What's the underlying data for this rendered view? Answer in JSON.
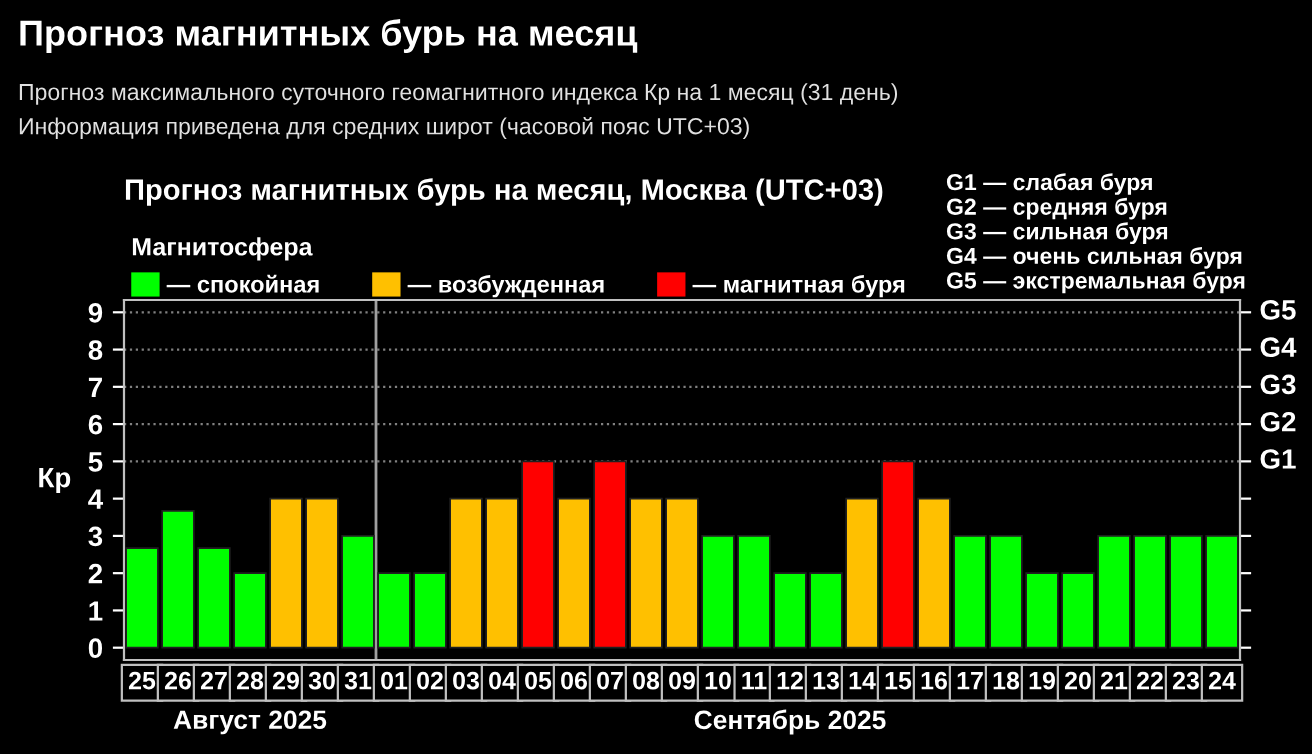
{
  "chart_data": {
    "type": "bar",
    "title": "Прогноз магнитных бурь на месяц, Москва (UTC+03)",
    "ylabel": "Кр",
    "legend_title": "Магнитосфера",
    "categories": [
      "25",
      "26",
      "27",
      "28",
      "29",
      "30",
      "31",
      "01",
      "02",
      "03",
      "04",
      "05",
      "06",
      "07",
      "08",
      "09",
      "10",
      "11",
      "12",
      "13",
      "14",
      "15",
      "16",
      "17",
      "18",
      "19",
      "20",
      "21",
      "22",
      "23",
      "24"
    ],
    "series": [
      {
        "name": "— спокойная",
        "color": "#00ff00",
        "values": [
          2.67,
          3.67,
          2.67,
          2,
          null,
          null,
          3,
          2,
          2,
          null,
          null,
          null,
          null,
          null,
          null,
          null,
          3,
          3,
          2,
          2,
          null,
          null,
          null,
          3,
          3,
          2,
          2,
          3,
          3,
          3,
          3
        ]
      },
      {
        "name": "— возбужденная",
        "color": "#ffc000",
        "values": [
          null,
          null,
          null,
          null,
          4,
          4,
          null,
          null,
          null,
          4,
          4,
          null,
          4,
          null,
          4,
          4,
          null,
          null,
          null,
          null,
          4,
          null,
          4,
          null,
          null,
          null,
          null,
          null,
          null,
          null,
          null
        ]
      },
      {
        "name": "— магнитная буря",
        "color": "#ff0000",
        "values": [
          null,
          null,
          null,
          null,
          null,
          null,
          null,
          null,
          null,
          null,
          null,
          5,
          null,
          5,
          null,
          null,
          null,
          null,
          null,
          null,
          null,
          5,
          null,
          null,
          null,
          null,
          null,
          null,
          null,
          null,
          null
        ]
      }
    ],
    "ylim": [
      -0.33,
      9.33
    ],
    "yticks": [
      0,
      1,
      2,
      3,
      4,
      5,
      6,
      7,
      8,
      9
    ],
    "ref_lines": [
      {
        "axis": "y",
        "value": 5,
        "label": "G1",
        "color": "#808080",
        "line_style": "dotted"
      },
      {
        "axis": "y",
        "value": 6,
        "label": "G2",
        "color": "#808080",
        "line_style": "dotted"
      },
      {
        "axis": "y",
        "value": 7,
        "label": "G3",
        "color": "#808080",
        "line_style": "dotted"
      },
      {
        "axis": "y",
        "value": 8,
        "label": "G4",
        "color": "#808080",
        "line_style": "dotted"
      },
      {
        "axis": "y",
        "value": 9,
        "label": "G5",
        "color": "#808080",
        "line_style": "dotted"
      },
      {
        "axis": "x",
        "value": "01",
        "color": "#a0a0a0",
        "line_style": "solid"
      }
    ],
    "legend": "top left",
    "grid": false,
    "annotations": [
      "Прогноз магнитных бурь на месяц",
      "Прогноз максимального суточного геомагнитного индекса Кр на 1 месяц (31 день)",
      "Информация приведена для средних широт (часовой пояс UTC+03)",
      "G1 — слабая буря",
      "G2 — средняя буря",
      "G3 — сильная буря",
      "G4 — очень сильная буря",
      "G5 — экстремальная буря",
      "Август 2025",
      "Сентябрь 2025"
    ]
  }
}
